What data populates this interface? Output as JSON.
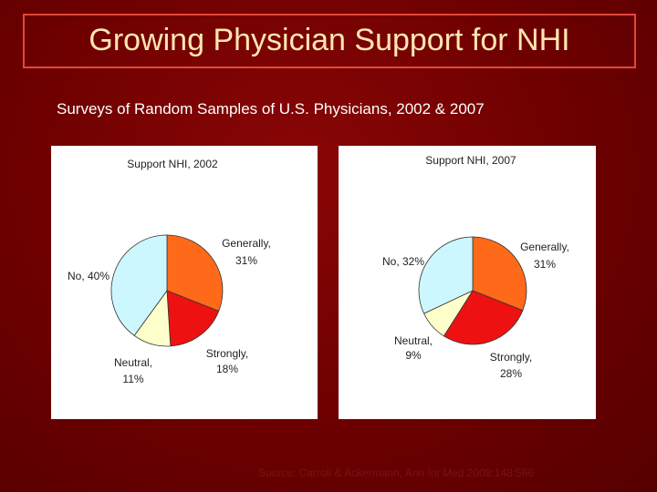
{
  "slide": {
    "title": "Growing Physician Support for NHI",
    "subtitle": "Surveys of Random Samples of U.S. Physicians, 2002 & 2007",
    "source": "Source: Carroll & Ackermann, Ann Int Med 2008;148:566"
  },
  "colors": {
    "generally": "#ff6a1a",
    "strongly": "#ee1111",
    "neutral": "#ffffcc",
    "no": "#ccf7ff"
  },
  "chart_data": [
    {
      "type": "pie",
      "title": "Support NHI, 2002",
      "slices": [
        {
          "key": "generally",
          "label_lines": [
            "Generally,",
            "31%"
          ],
          "value": 31
        },
        {
          "key": "strongly",
          "label_lines": [
            "Strongly,",
            "18%"
          ],
          "value": 18
        },
        {
          "key": "neutral",
          "label_lines": [
            "Neutral,",
            "11%"
          ],
          "value": 11
        },
        {
          "key": "no",
          "label_lines": [
            "No, 40%"
          ],
          "value": 40
        }
      ]
    },
    {
      "type": "pie",
      "title": "Support NHI, 2007",
      "slices": [
        {
          "key": "generally",
          "label_lines": [
            "Generally,",
            "31%"
          ],
          "value": 31
        },
        {
          "key": "strongly",
          "label_lines": [
            "Strongly,",
            "28%"
          ],
          "value": 28
        },
        {
          "key": "neutral",
          "label_lines": [
            "Neutral,",
            "9%"
          ],
          "value": 9
        },
        {
          "key": "no",
          "label_lines": [
            "No, 32%"
          ],
          "value": 32
        }
      ]
    }
  ]
}
